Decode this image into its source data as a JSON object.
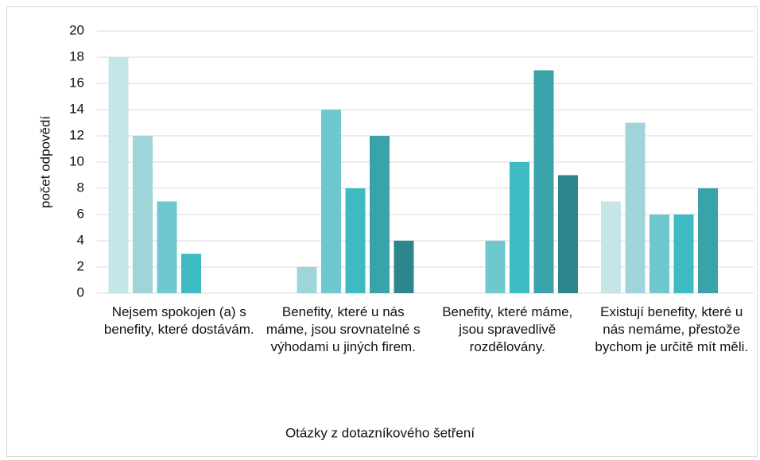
{
  "chart_data": {
    "type": "bar",
    "x_label": "Otázky z dotazníkového šetření",
    "y_label": "počet odpovědí",
    "categories": [
      "Nejsem spokojen (a) s benefity, které dostávám.",
      "Benefity, které u nás máme, jsou srovnatelné s výhodami u jiných firem.",
      "Benefity, které máme, jsou spravedlivě rozdělovány.",
      "Existují benefity, které u nás nemáme, přestože bychom je určitě mít měli."
    ],
    "series": [
      {
        "color": "#c5e5e8",
        "values": [
          18,
          0,
          0,
          7
        ]
      },
      {
        "color": "#9fd4d9",
        "values": [
          12,
          2,
          0,
          13
        ]
      },
      {
        "color": "#6fc8ce",
        "values": [
          7,
          14,
          4,
          6
        ]
      },
      {
        "color": "#3dbac2",
        "values": [
          3,
          8,
          10,
          6
        ]
      },
      {
        "color": "#3aa3aa",
        "values": [
          0,
          12,
          17,
          8
        ]
      },
      {
        "color": "#2c868c",
        "values": [
          0,
          4,
          9,
          0
        ]
      }
    ],
    "ylim": [
      0,
      20
    ],
    "yticks": [
      0,
      2,
      4,
      6,
      8,
      10,
      12,
      14,
      16,
      18,
      20
    ],
    "grid": true
  }
}
